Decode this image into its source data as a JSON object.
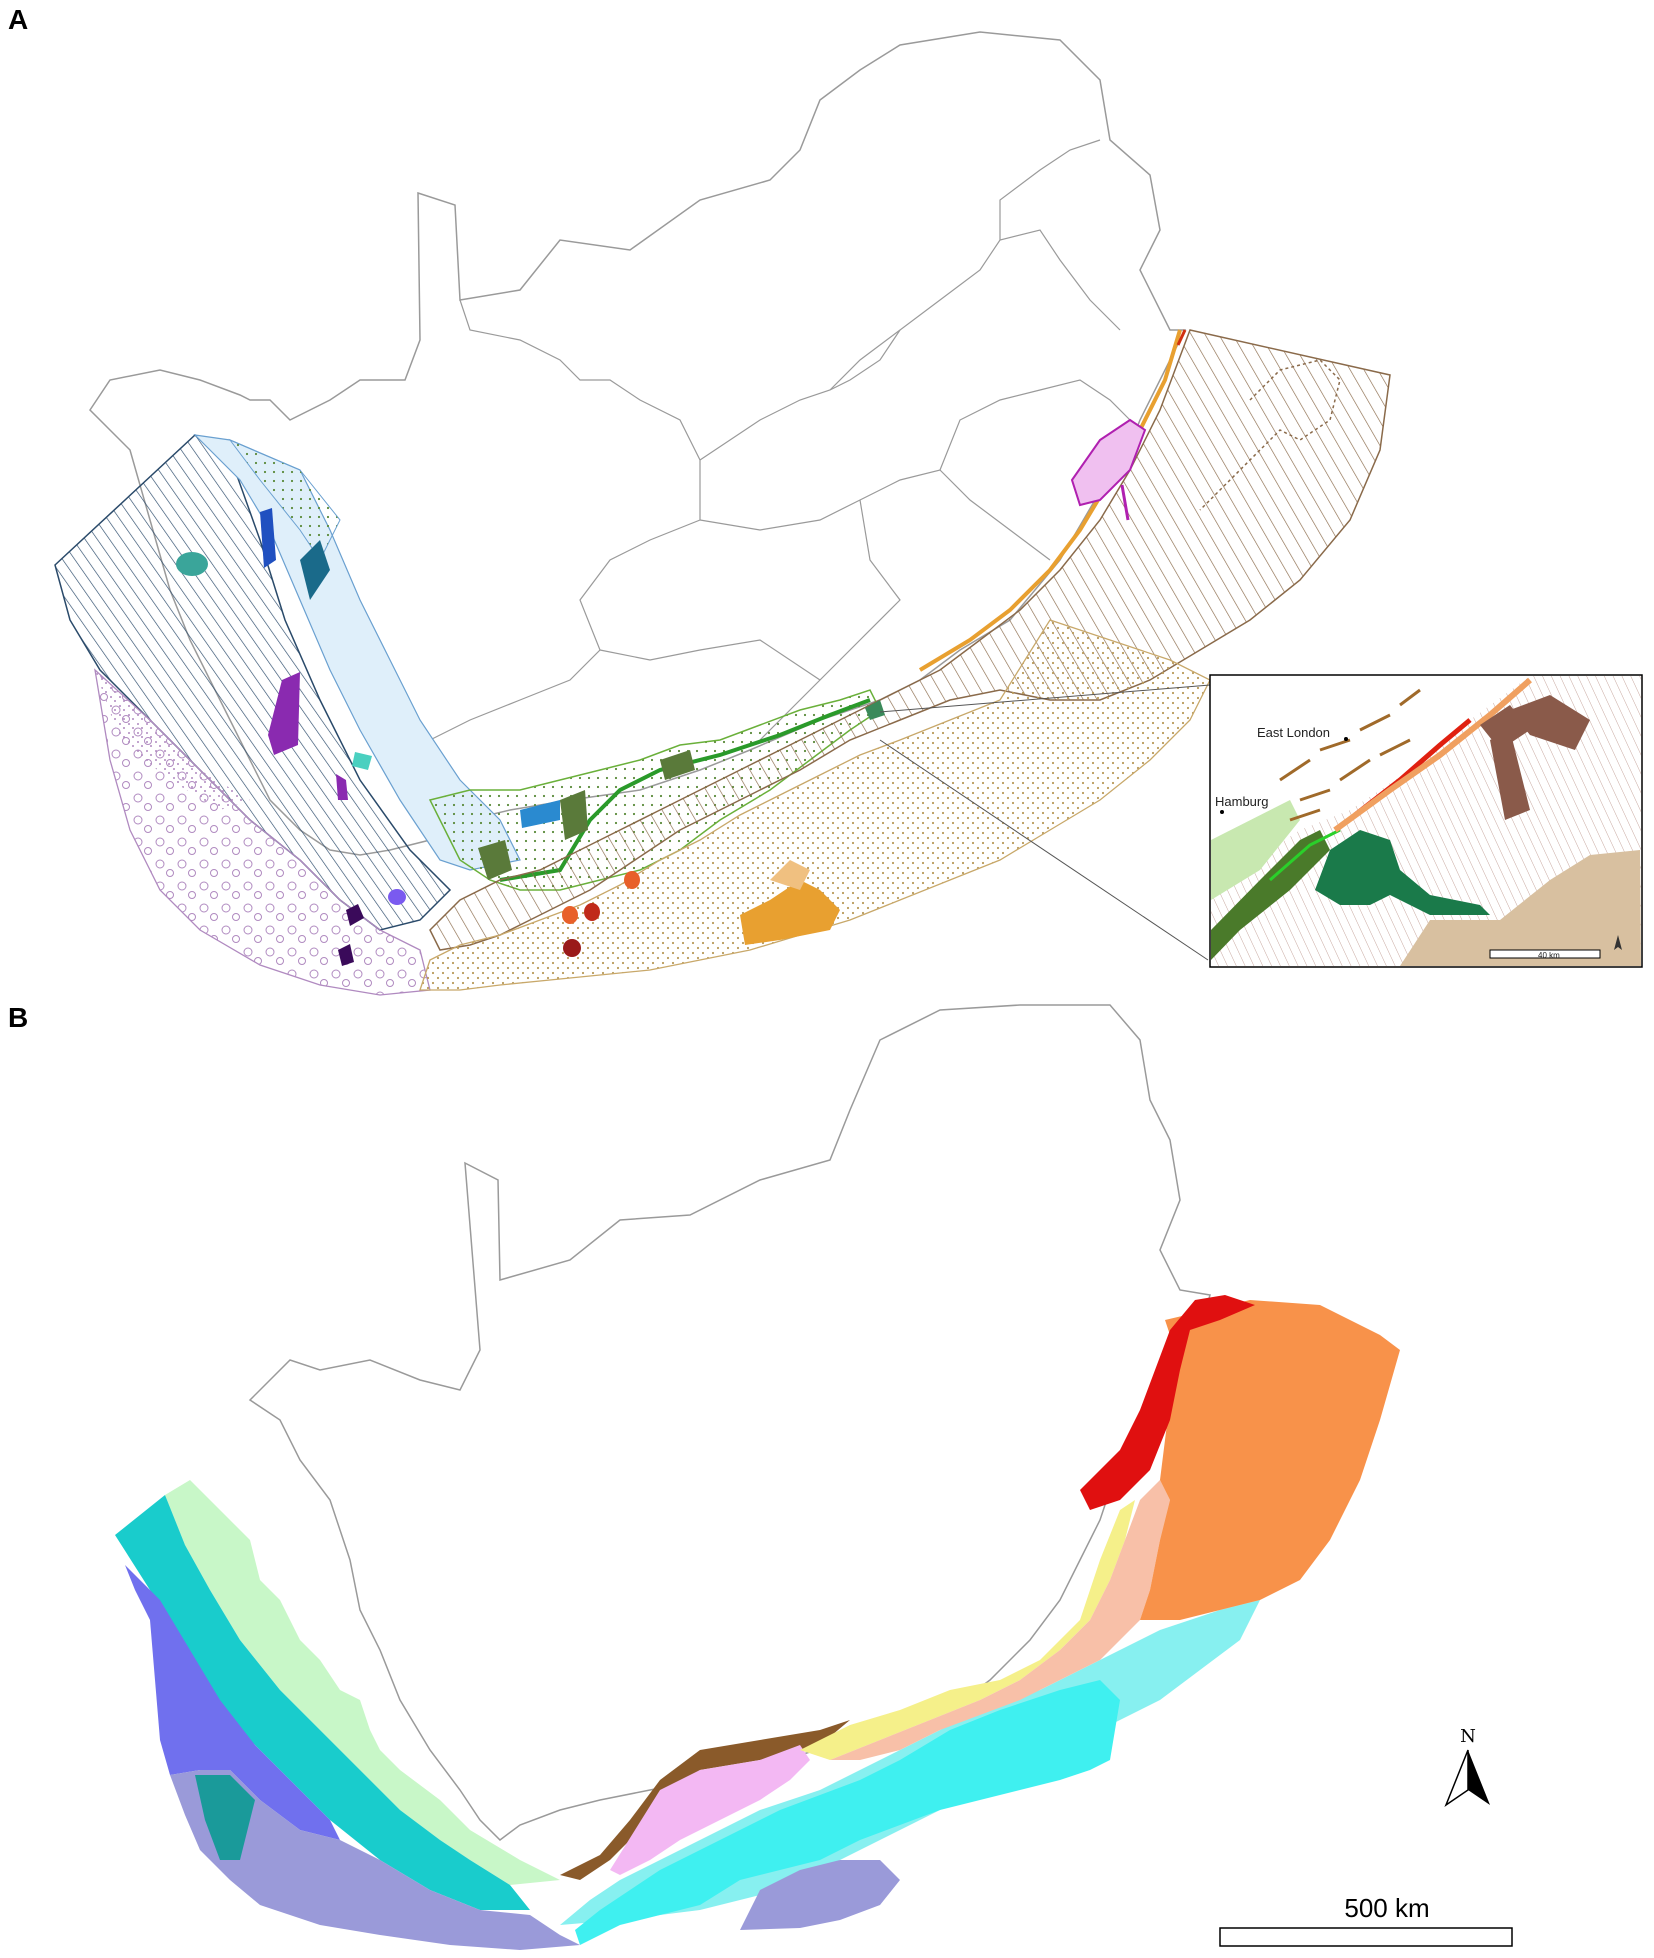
{
  "panels": {
    "a": {
      "label": "A"
    },
    "b": {
      "label": "B"
    }
  },
  "inset": {
    "places": [
      "East London",
      "Hamburg"
    ],
    "scale_label": "40 km"
  },
  "north_arrow": {
    "label": "N"
  },
  "scale_bar": {
    "label": "500 km"
  },
  "colors": {
    "outline": "#9a9a9a",
    "b_ecoregions": [
      "#c8f7c8",
      "#19cccc",
      "#7070ee",
      "#1a9a9a",
      "#9a9ad9",
      "#87f0f0",
      "#3ff0f0",
      "#f3b8f3",
      "#8a5a2a",
      "#f5f08a",
      "#f8c0a8",
      "#f8924a",
      "#e01010"
    ],
    "a_zones": [
      "#b98a4a",
      "#d8c39a",
      "#c9a3d6",
      "#3a5a7a",
      "#6aa0d0",
      "#5a7a3a",
      "#e89a20",
      "#d84a10",
      "#b020b0",
      "#2a8a5a"
    ]
  }
}
